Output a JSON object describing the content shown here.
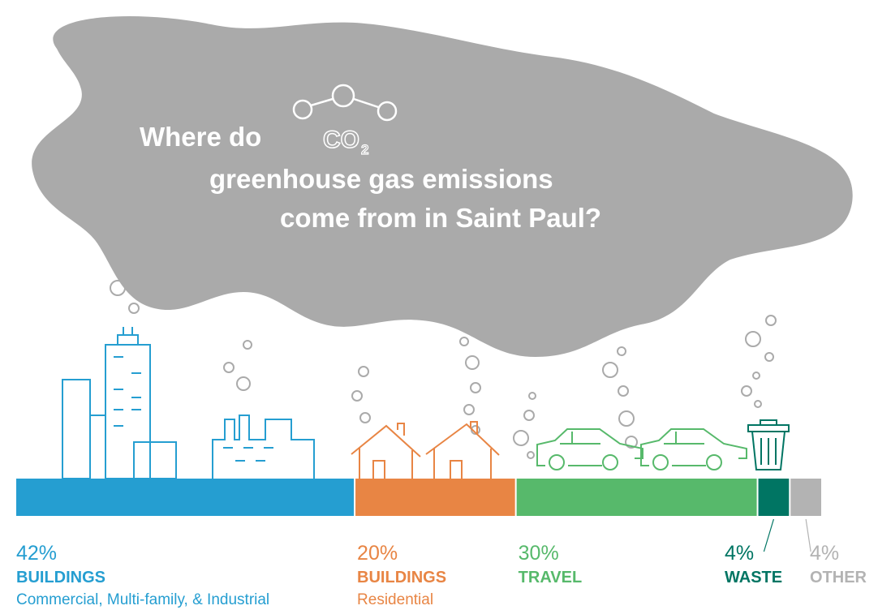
{
  "chart_data": {
    "type": "stacked_bar",
    "title": [
      "Where do",
      "greenhouse gas emissions",
      "come from in Saint Paul?"
    ],
    "title_icon": {
      "main": "CO",
      "sub": "2"
    },
    "xlim": [
      0,
      100
    ],
    "series": [
      {
        "name": "BUILDINGS",
        "description": "Commercial, Multi-family, & Industrial",
        "color": "#259ed1",
        "values": [
          42
        ],
        "value_labels": [
          "42%"
        ]
      },
      {
        "name": "BUILDINGS",
        "description": "Residential",
        "color": "#e88544",
        "values": [
          20
        ],
        "value_labels": [
          "20%"
        ]
      },
      {
        "name": "TRAVEL",
        "color": "#57b96b",
        "values": [
          30
        ],
        "value_labels": [
          "30%"
        ]
      },
      {
        "name": "WASTE",
        "color": "#007563",
        "values": [
          4
        ],
        "value_labels": [
          "4%"
        ]
      },
      {
        "name": "OTHER",
        "color": "#b3b3b3",
        "values": [
          4
        ],
        "value_labels": [
          "4%"
        ]
      }
    ]
  }
}
